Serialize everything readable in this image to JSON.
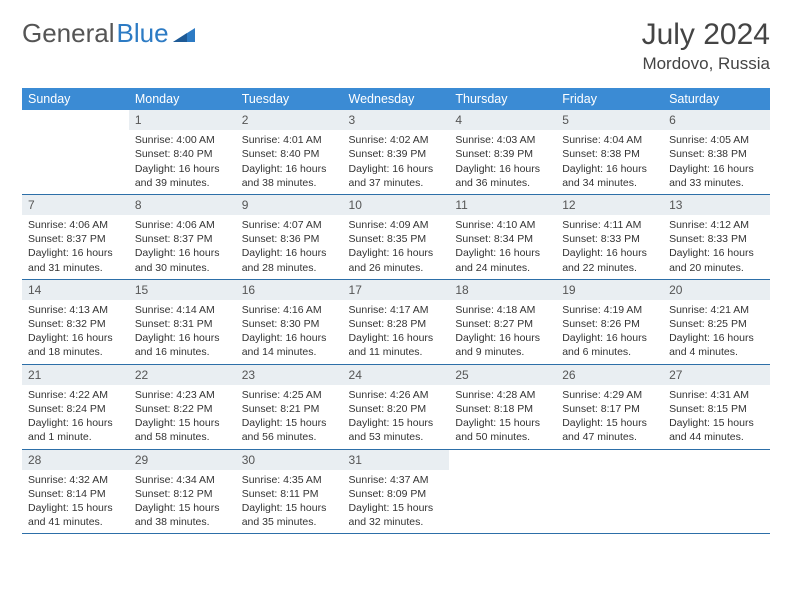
{
  "brand": {
    "part1": "General",
    "part2": "Blue"
  },
  "title": "July 2024",
  "location": "Mordovo, Russia",
  "colors": {
    "header_bg": "#3b8bd4",
    "daynum_bg": "#e9eef2",
    "row_border": "#2d6fa8",
    "brand_blue": "#2d7bc4"
  },
  "weekdays": [
    "Sunday",
    "Monday",
    "Tuesday",
    "Wednesday",
    "Thursday",
    "Friday",
    "Saturday"
  ],
  "weeks": [
    [
      {
        "n": "",
        "sr": "",
        "ss": "",
        "dl": ""
      },
      {
        "n": "1",
        "sr": "Sunrise: 4:00 AM",
        "ss": "Sunset: 8:40 PM",
        "dl": "Daylight: 16 hours and 39 minutes."
      },
      {
        "n": "2",
        "sr": "Sunrise: 4:01 AM",
        "ss": "Sunset: 8:40 PM",
        "dl": "Daylight: 16 hours and 38 minutes."
      },
      {
        "n": "3",
        "sr": "Sunrise: 4:02 AM",
        "ss": "Sunset: 8:39 PM",
        "dl": "Daylight: 16 hours and 37 minutes."
      },
      {
        "n": "4",
        "sr": "Sunrise: 4:03 AM",
        "ss": "Sunset: 8:39 PM",
        "dl": "Daylight: 16 hours and 36 minutes."
      },
      {
        "n": "5",
        "sr": "Sunrise: 4:04 AM",
        "ss": "Sunset: 8:38 PM",
        "dl": "Daylight: 16 hours and 34 minutes."
      },
      {
        "n": "6",
        "sr": "Sunrise: 4:05 AM",
        "ss": "Sunset: 8:38 PM",
        "dl": "Daylight: 16 hours and 33 minutes."
      }
    ],
    [
      {
        "n": "7",
        "sr": "Sunrise: 4:06 AM",
        "ss": "Sunset: 8:37 PM",
        "dl": "Daylight: 16 hours and 31 minutes."
      },
      {
        "n": "8",
        "sr": "Sunrise: 4:06 AM",
        "ss": "Sunset: 8:37 PM",
        "dl": "Daylight: 16 hours and 30 minutes."
      },
      {
        "n": "9",
        "sr": "Sunrise: 4:07 AM",
        "ss": "Sunset: 8:36 PM",
        "dl": "Daylight: 16 hours and 28 minutes."
      },
      {
        "n": "10",
        "sr": "Sunrise: 4:09 AM",
        "ss": "Sunset: 8:35 PM",
        "dl": "Daylight: 16 hours and 26 minutes."
      },
      {
        "n": "11",
        "sr": "Sunrise: 4:10 AM",
        "ss": "Sunset: 8:34 PM",
        "dl": "Daylight: 16 hours and 24 minutes."
      },
      {
        "n": "12",
        "sr": "Sunrise: 4:11 AM",
        "ss": "Sunset: 8:33 PM",
        "dl": "Daylight: 16 hours and 22 minutes."
      },
      {
        "n": "13",
        "sr": "Sunrise: 4:12 AM",
        "ss": "Sunset: 8:33 PM",
        "dl": "Daylight: 16 hours and 20 minutes."
      }
    ],
    [
      {
        "n": "14",
        "sr": "Sunrise: 4:13 AM",
        "ss": "Sunset: 8:32 PM",
        "dl": "Daylight: 16 hours and 18 minutes."
      },
      {
        "n": "15",
        "sr": "Sunrise: 4:14 AM",
        "ss": "Sunset: 8:31 PM",
        "dl": "Daylight: 16 hours and 16 minutes."
      },
      {
        "n": "16",
        "sr": "Sunrise: 4:16 AM",
        "ss": "Sunset: 8:30 PM",
        "dl": "Daylight: 16 hours and 14 minutes."
      },
      {
        "n": "17",
        "sr": "Sunrise: 4:17 AM",
        "ss": "Sunset: 8:28 PM",
        "dl": "Daylight: 16 hours and 11 minutes."
      },
      {
        "n": "18",
        "sr": "Sunrise: 4:18 AM",
        "ss": "Sunset: 8:27 PM",
        "dl": "Daylight: 16 hours and 9 minutes."
      },
      {
        "n": "19",
        "sr": "Sunrise: 4:19 AM",
        "ss": "Sunset: 8:26 PM",
        "dl": "Daylight: 16 hours and 6 minutes."
      },
      {
        "n": "20",
        "sr": "Sunrise: 4:21 AM",
        "ss": "Sunset: 8:25 PM",
        "dl": "Daylight: 16 hours and 4 minutes."
      }
    ],
    [
      {
        "n": "21",
        "sr": "Sunrise: 4:22 AM",
        "ss": "Sunset: 8:24 PM",
        "dl": "Daylight: 16 hours and 1 minute."
      },
      {
        "n": "22",
        "sr": "Sunrise: 4:23 AM",
        "ss": "Sunset: 8:22 PM",
        "dl": "Daylight: 15 hours and 58 minutes."
      },
      {
        "n": "23",
        "sr": "Sunrise: 4:25 AM",
        "ss": "Sunset: 8:21 PM",
        "dl": "Daylight: 15 hours and 56 minutes."
      },
      {
        "n": "24",
        "sr": "Sunrise: 4:26 AM",
        "ss": "Sunset: 8:20 PM",
        "dl": "Daylight: 15 hours and 53 minutes."
      },
      {
        "n": "25",
        "sr": "Sunrise: 4:28 AM",
        "ss": "Sunset: 8:18 PM",
        "dl": "Daylight: 15 hours and 50 minutes."
      },
      {
        "n": "26",
        "sr": "Sunrise: 4:29 AM",
        "ss": "Sunset: 8:17 PM",
        "dl": "Daylight: 15 hours and 47 minutes."
      },
      {
        "n": "27",
        "sr": "Sunrise: 4:31 AM",
        "ss": "Sunset: 8:15 PM",
        "dl": "Daylight: 15 hours and 44 minutes."
      }
    ],
    [
      {
        "n": "28",
        "sr": "Sunrise: 4:32 AM",
        "ss": "Sunset: 8:14 PM",
        "dl": "Daylight: 15 hours and 41 minutes."
      },
      {
        "n": "29",
        "sr": "Sunrise: 4:34 AM",
        "ss": "Sunset: 8:12 PM",
        "dl": "Daylight: 15 hours and 38 minutes."
      },
      {
        "n": "30",
        "sr": "Sunrise: 4:35 AM",
        "ss": "Sunset: 8:11 PM",
        "dl": "Daylight: 15 hours and 35 minutes."
      },
      {
        "n": "31",
        "sr": "Sunrise: 4:37 AM",
        "ss": "Sunset: 8:09 PM",
        "dl": "Daylight: 15 hours and 32 minutes."
      },
      {
        "n": "",
        "sr": "",
        "ss": "",
        "dl": ""
      },
      {
        "n": "",
        "sr": "",
        "ss": "",
        "dl": ""
      },
      {
        "n": "",
        "sr": "",
        "ss": "",
        "dl": ""
      }
    ]
  ]
}
